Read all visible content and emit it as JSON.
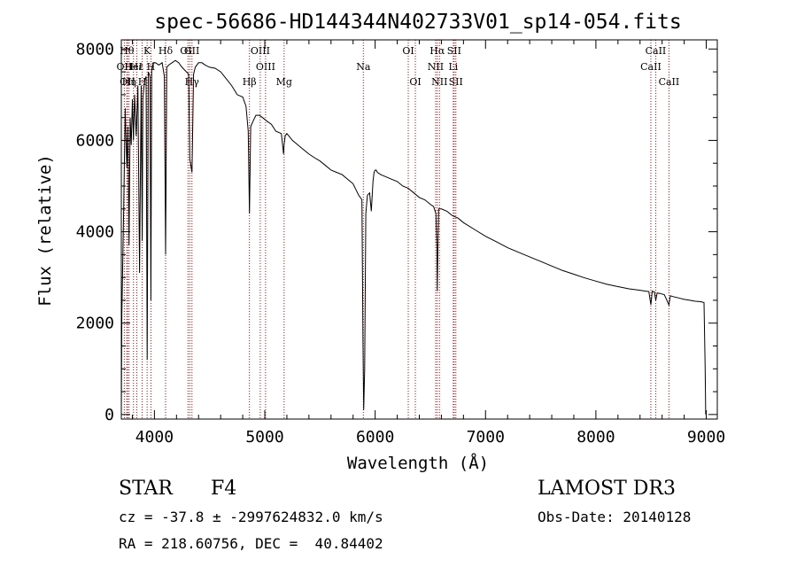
{
  "chart_data": {
    "type": "line",
    "title": "spec-56686-HD144344N402733V01_sp14-054.fits",
    "xlabel": "Wavelength (Å)",
    "ylabel": "Flux (relative)",
    "xlim": [
      3700,
      9100
    ],
    "ylim": [
      -100,
      8200
    ],
    "xticks": [
      4000,
      5000,
      6000,
      7000,
      8000,
      9000
    ],
    "yticks": [
      0,
      2000,
      4000,
      6000,
      8000
    ],
    "series": [
      {
        "name": "spectrum",
        "x": [
          3700,
          3705,
          3720,
          3735,
          3750,
          3760,
          3770,
          3780,
          3790,
          3800,
          3810,
          3820,
          3835,
          3850,
          3865,
          3880,
          3889,
          3895,
          3910,
          3925,
          3934,
          3945,
          3960,
          3968,
          3975,
          3990,
          4010,
          4040,
          4070,
          4090,
          4101,
          4112,
          4130,
          4160,
          4190,
          4220,
          4250,
          4270,
          4290,
          4310,
          4320,
          4340,
          4355,
          4370,
          4400,
          4430,
          4460,
          4500,
          4550,
          4600,
          4650,
          4700,
          4750,
          4800,
          4830,
          4850,
          4861,
          4872,
          4890,
          4920,
          4950,
          4980,
          5020,
          5060,
          5100,
          5150,
          5170,
          5175,
          5185,
          5200,
          5250,
          5300,
          5350,
          5400,
          5450,
          5500,
          5550,
          5600,
          5650,
          5700,
          5750,
          5800,
          5850,
          5880,
          5890,
          5896,
          5905,
          5915,
          5930,
          5950,
          5965,
          5980,
          5990,
          6000,
          6010,
          6020,
          6050,
          6100,
          6150,
          6200,
          6250,
          6300,
          6350,
          6400,
          6450,
          6500,
          6530,
          6550,
          6560,
          6563,
          6567,
          6575,
          6600,
          6650,
          6700,
          6750,
          6800,
          6900,
          7000,
          7100,
          7200,
          7300,
          7400,
          7500,
          7600,
          7700,
          7800,
          7900,
          8000,
          8100,
          8200,
          8300,
          8400,
          8450,
          8480,
          8498,
          8510,
          8530,
          8542,
          8555,
          8580,
          8620,
          8662,
          8675,
          8700,
          8750,
          8800,
          8850,
          8900,
          8950,
          8980,
          8990,
          8995
        ],
        "y": [
          0,
          2200,
          4300,
          6700,
          5400,
          6300,
          3700,
          6500,
          5900,
          6900,
          6000,
          7000,
          6100,
          7200,
          3100,
          7200,
          3800,
          6900,
          7300,
          7400,
          1200,
          7500,
          7400,
          2500,
          7550,
          7700,
          7700,
          7650,
          7700,
          7400,
          3500,
          7600,
          7650,
          7700,
          7750,
          7700,
          7600,
          7550,
          7500,
          7450,
          5600,
          5300,
          7450,
          7600,
          7700,
          7700,
          7650,
          7600,
          7580,
          7500,
          7350,
          7200,
          7000,
          6950,
          6750,
          6200,
          4400,
          6300,
          6400,
          6550,
          6550,
          6500,
          6420,
          6350,
          6200,
          6150,
          5700,
          5900,
          6100,
          6150,
          6000,
          5900,
          5800,
          5700,
          5620,
          5550,
          5450,
          5350,
          5300,
          5250,
          5150,
          5050,
          4800,
          4700,
          1600,
          100,
          1000,
          4400,
          4800,
          4850,
          4450,
          5100,
          5300,
          5350,
          5350,
          5300,
          5250,
          5200,
          5150,
          5100,
          5000,
          4950,
          4850,
          4750,
          4700,
          4600,
          4550,
          4400,
          3600,
          2700,
          3400,
          4500,
          4500,
          4450,
          4350,
          4300,
          4200,
          4050,
          3900,
          3780,
          3650,
          3550,
          3450,
          3350,
          3250,
          3150,
          3070,
          2990,
          2920,
          2850,
          2800,
          2750,
          2720,
          2700,
          2690,
          2400,
          2700,
          2680,
          2500,
          2660,
          2650,
          2620,
          2400,
          2600,
          2580,
          2550,
          2520,
          2500,
          2480,
          2470,
          2450,
          1000,
          0
        ]
      }
    ],
    "lines": [
      {
        "label": "OII",
        "x": 3727,
        "row": 2
      },
      {
        "label": "Hθ",
        "x": 3750,
        "row": 1
      },
      {
        "label": "OII",
        "x": 3756,
        "row": 3
      },
      {
        "label": "Hη",
        "x": 3770,
        "row": 3
      },
      {
        "label": "HeI",
        "x": 3810,
        "row": 2
      },
      {
        "label": "Hε",
        "x": 3840,
        "row": 2
      },
      {
        "label": "H",
        "x": 3889,
        "row": 3
      },
      {
        "label": "K",
        "x": 3934,
        "row": 1
      },
      {
        "label": "H",
        "x": 3968,
        "row": 2
      },
      {
        "label": "Hδ",
        "x": 4101,
        "row": 1
      },
      {
        "label": "G",
        "x": 4304,
        "row": 1
      },
      {
        "label": "OIII",
        "x": 4320,
        "row": 1
      },
      {
        "label": "Hγ",
        "x": 4340,
        "row": 3
      },
      {
        "label": "Hβ",
        "x": 4861,
        "row": 3
      },
      {
        "label": "OIII",
        "x": 4959,
        "row": 1
      },
      {
        "label": "OIII",
        "x": 5007,
        "row": 2
      },
      {
        "label": "Mg",
        "x": 5175,
        "row": 3
      },
      {
        "label": "Na",
        "x": 5893,
        "row": 2
      },
      {
        "label": "OI",
        "x": 6300,
        "row": 1
      },
      {
        "label": "OI",
        "x": 6364,
        "row": 3
      },
      {
        "label": "Hα",
        "x": 6563,
        "row": 1
      },
      {
        "label": "NII",
        "x": 6548,
        "row": 2
      },
      {
        "label": "NII",
        "x": 6583,
        "row": 3
      },
      {
        "label": "Li",
        "x": 6708,
        "row": 2
      },
      {
        "label": "SII",
        "x": 6716,
        "row": 1
      },
      {
        "label": "SII",
        "x": 6731,
        "row": 3
      },
      {
        "label": "CaII",
        "x": 8498,
        "row": 2
      },
      {
        "label": "CaII",
        "x": 8542,
        "row": 1
      },
      {
        "label": "CaII",
        "x": 8662,
        "row": 3
      }
    ]
  },
  "info": {
    "object_type": "STAR",
    "subclass": "F4",
    "survey": "LAMOST DR3",
    "cz": "cz = -37.8 ± -2997624832.0 km/s",
    "obs_date": "Obs-Date: 20140128",
    "radec": "RA = 218.60756, DEC =  40.84402"
  }
}
